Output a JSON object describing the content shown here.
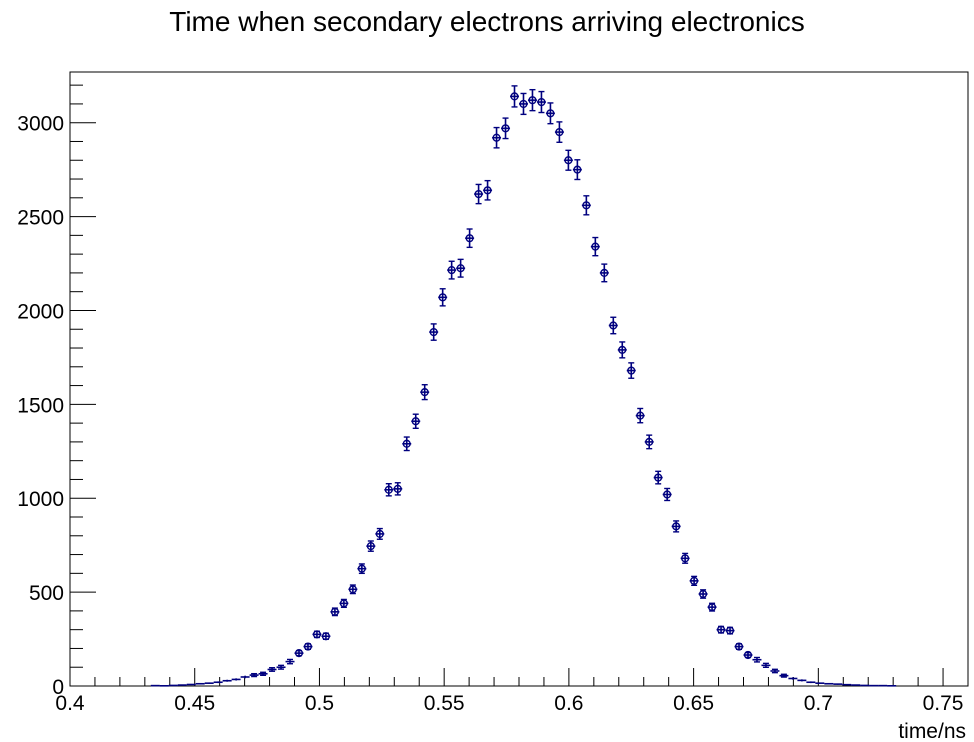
{
  "chart_data": {
    "type": "scatter",
    "title": "Time when secondary electrons arriving electronics",
    "xlabel": "time/ns",
    "ylabel": "",
    "xlim": [
      0.4,
      0.76
    ],
    "ylim": [
      0,
      3270
    ],
    "x_ticks": [
      "0.4",
      "0.45",
      "0.5",
      "0.55",
      "0.6",
      "0.65",
      "0.7",
      "0.75"
    ],
    "y_ticks": [
      "0",
      "500",
      "1000",
      "1500",
      "2000",
      "2500",
      "3000"
    ],
    "grid": false,
    "marker_color": "#00007f",
    "bin_width": 0.0036,
    "series": [
      {
        "x": [
          0.4342,
          0.4378,
          0.4414,
          0.445,
          0.4486,
          0.4522,
          0.4558,
          0.4594,
          0.463,
          0.4666,
          0.4702,
          0.4738,
          0.4774,
          0.481,
          0.4846,
          0.4882,
          0.4918,
          0.4954,
          0.499,
          0.5026,
          0.5062,
          0.5098,
          0.5134,
          0.517,
          0.5206,
          0.5242,
          0.5278,
          0.5314,
          0.535,
          0.5386,
          0.5422,
          0.5458,
          0.5494,
          0.553,
          0.5566,
          0.5602,
          0.5638,
          0.5674,
          0.571,
          0.5746,
          0.5782,
          0.5818,
          0.5854,
          0.589,
          0.5926,
          0.5962,
          0.5998,
          0.6034,
          0.607,
          0.6106,
          0.6142,
          0.6178,
          0.6214,
          0.625,
          0.6286,
          0.6322,
          0.6358,
          0.6394,
          0.643,
          0.6466,
          0.6502,
          0.6538,
          0.6574,
          0.661,
          0.6646,
          0.6682,
          0.6718,
          0.6754,
          0.679,
          0.6826,
          0.6862,
          0.6898,
          0.6934,
          0.697,
          0.7006,
          0.7042,
          0.7078,
          0.7114,
          0.715,
          0.7186,
          0.7222,
          0.7258,
          0.7294
        ],
        "y": [
          2,
          1,
          3,
          5,
          8,
          12,
          15,
          20,
          28,
          35,
          48,
          58,
          65,
          88,
          100,
          130,
          175,
          210,
          275,
          265,
          395,
          440,
          515,
          625,
          745,
          810,
          1045,
          1050,
          1290,
          1410,
          1565,
          1885,
          2070,
          2215,
          2225,
          2385,
          2620,
          2640,
          2920,
          2970,
          3140,
          3100,
          3120,
          3110,
          3050,
          2950,
          2800,
          2750,
          2560,
          2340,
          2200,
          1920,
          1790,
          1680,
          1440,
          1300,
          1110,
          1020,
          850,
          680,
          560,
          490,
          420,
          300,
          295,
          210,
          165,
          140,
          110,
          80,
          55,
          40,
          30,
          20,
          15,
          12,
          10,
          7,
          5,
          3,
          2,
          2,
          1
        ]
      }
    ]
  }
}
